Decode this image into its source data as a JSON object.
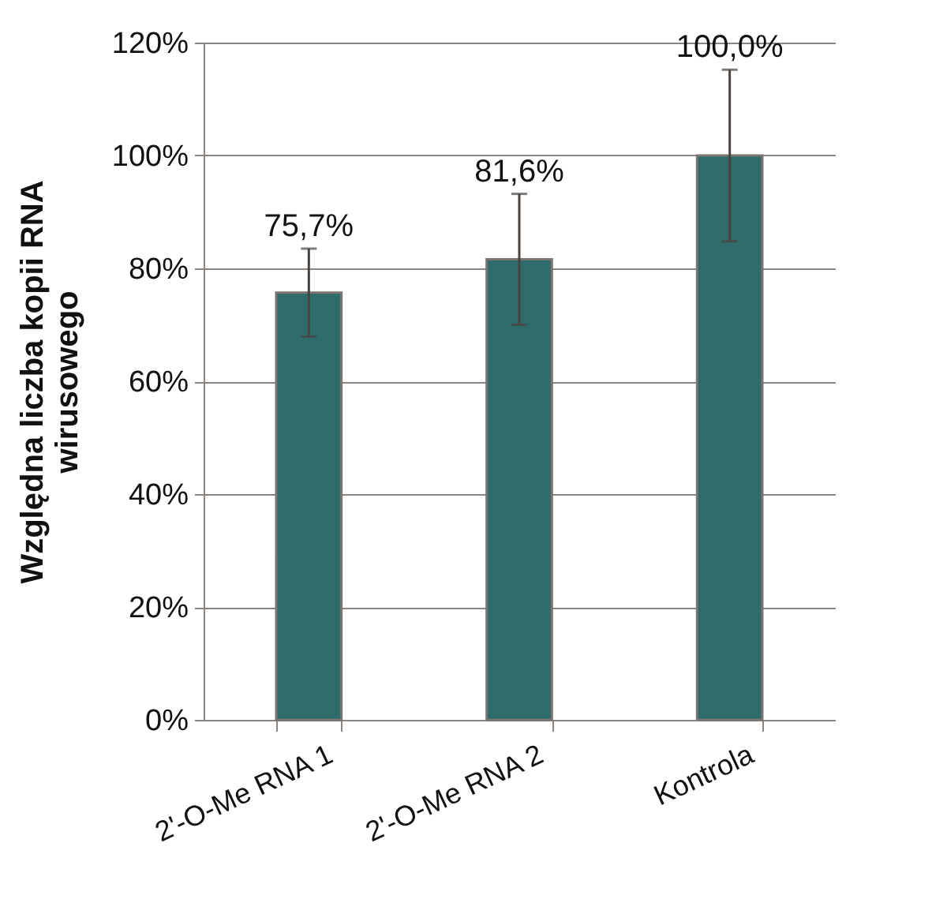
{
  "chart_data": {
    "type": "bar",
    "ylabel": "Względna liczba kopii RNA\nwirusowego",
    "categories": [
      "2'-O-Me RNA 1",
      "2'-O-Me RNA 2",
      "Kontrola"
    ],
    "values": [
      75.7,
      81.6,
      100.0
    ],
    "color": "#2e6b6b",
    "errors": [
      7.8,
      11.6,
      15.2
    ],
    "value_labels": [
      "75,7%",
      "81,6%",
      "100,0%"
    ],
    "ylim": [
      0,
      120
    ],
    "yticks": [
      {
        "value": 0,
        "label": "0%"
      },
      {
        "value": 20,
        "label": "20%"
      },
      {
        "value": 40,
        "label": "40%"
      },
      {
        "value": 60,
        "label": "60%"
      },
      {
        "value": 80,
        "label": "80%"
      },
      {
        "value": 100,
        "label": "100%"
      },
      {
        "value": 120,
        "label": "120%"
      }
    ],
    "grid": "y"
  }
}
